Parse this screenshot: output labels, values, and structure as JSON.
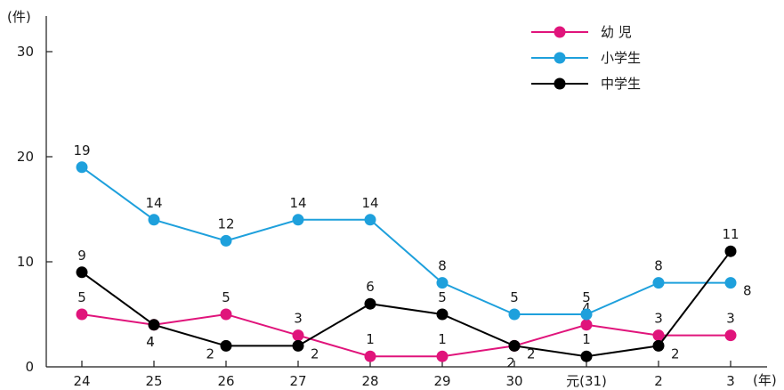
{
  "chart_data": {
    "type": "line",
    "y_unit_label": "(件)",
    "x_unit_label": "(年)",
    "categories": [
      "24",
      "25",
      "26",
      "27",
      "28",
      "29",
      "30",
      "元(31)",
      "2",
      "3"
    ],
    "ylim": [
      0,
      30
    ],
    "yticks": [
      "0",
      "10",
      "20",
      "30"
    ],
    "grid": false,
    "legend_position": "top-right",
    "series": [
      {
        "name": "幼 児",
        "color": "#e0147b",
        "values": [
          5,
          4,
          5,
          3,
          1,
          1,
          2,
          4,
          3,
          3
        ]
      },
      {
        "name": "小学生",
        "color": "#1ea0dc",
        "values": [
          19,
          14,
          12,
          14,
          14,
          8,
          5,
          5,
          8,
          8
        ]
      },
      {
        "name": "中学生",
        "color": "#000000",
        "values": [
          9,
          4,
          2,
          2,
          6,
          5,
          2,
          1,
          2,
          11
        ]
      }
    ]
  }
}
